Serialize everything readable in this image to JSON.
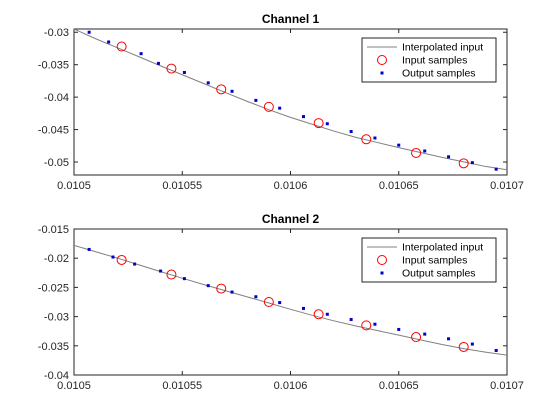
{
  "chart_data": [
    {
      "type": "line",
      "title": "Channel 1",
      "xlim": [
        0.0105,
        0.0107
      ],
      "ylim": [
        -0.052,
        -0.0295
      ],
      "x_ticks": [
        0.0105,
        0.01055,
        0.0106,
        0.01065,
        0.0107
      ],
      "x_tick_labels": [
        "0.0105",
        "0.01055",
        "0.0106",
        "0.01065",
        "0.0107"
      ],
      "y_ticks": [
        -0.03,
        -0.035,
        -0.04,
        -0.045,
        -0.05
      ],
      "y_tick_labels": [
        "-0.03",
        "-0.035",
        "-0.04",
        "-0.045",
        "-0.05"
      ],
      "grid": false,
      "legend_position": "top-right",
      "interpolated_curve": {
        "x": [
          0.0105,
          0.01051,
          0.01052,
          0.01053,
          0.01054,
          0.01055,
          0.01056,
          0.01057,
          0.01058,
          0.01059,
          0.0106,
          0.01061,
          0.01062,
          0.01063,
          0.01064,
          0.01065,
          0.01066,
          0.01067,
          0.01068,
          0.01069,
          0.0107
        ],
        "y": [
          -0.0295,
          -0.031,
          -0.03238,
          -0.03378,
          -0.03518,
          -0.03655,
          -0.03792,
          -0.0393,
          -0.04065,
          -0.04193,
          -0.04312,
          -0.04418,
          -0.04523,
          -0.04618,
          -0.04698,
          -0.04778,
          -0.04853,
          -0.04928,
          -0.04998,
          -0.05068,
          -0.0512
        ]
      },
      "series": [
        {
          "name": "Interpolated input",
          "style": "line",
          "color": "#808080"
        },
        {
          "name": "Input samples",
          "style": "circle",
          "color": "#ff0000",
          "x": [
            0.010522,
            0.010545,
            0.010568,
            0.01059,
            0.010613,
            0.010635,
            0.010658,
            0.01068
          ],
          "y": [
            -0.0322,
            -0.0356,
            -0.0388,
            -0.0415,
            -0.044,
            -0.0465,
            -0.0486,
            -0.0502
          ]
        },
        {
          "name": "Output samples",
          "style": "square",
          "color": "#0000cc",
          "x": [
            0.010507,
            0.010516,
            0.010531,
            0.010539,
            0.010551,
            0.010562,
            0.010573,
            0.010584,
            0.010595,
            0.010606,
            0.010617,
            0.010628,
            0.010639,
            0.01065,
            0.010662,
            0.010673,
            0.010684,
            0.010695
          ],
          "y": [
            -0.03,
            -0.0315,
            -0.0333,
            -0.0348,
            -0.0362,
            -0.0378,
            -0.0391,
            -0.0405,
            -0.0417,
            -0.043,
            -0.0441,
            -0.0453,
            -0.0463,
            -0.0474,
            -0.0483,
            -0.0492,
            -0.0501,
            -0.0511
          ]
        }
      ]
    },
    {
      "type": "line",
      "title": "Channel 2",
      "xlim": [
        0.0105,
        0.0107
      ],
      "ylim": [
        -0.04,
        -0.015
      ],
      "x_ticks": [
        0.0105,
        0.01055,
        0.0106,
        0.01065,
        0.0107
      ],
      "x_tick_labels": [
        "0.0105",
        "0.01055",
        "0.0106",
        "0.01065",
        "0.0107"
      ],
      "y_ticks": [
        -0.015,
        -0.02,
        -0.025,
        -0.03,
        -0.035,
        -0.04
      ],
      "y_tick_labels": [
        "-0.015",
        "-0.02",
        "-0.025",
        "-0.03",
        "-0.035",
        "-0.04"
      ],
      "grid": false,
      "legend_position": "top-right",
      "interpolated_curve": {
        "x": [
          0.0105,
          0.01051,
          0.01052,
          0.01053,
          0.01054,
          0.01055,
          0.01056,
          0.01057,
          0.01058,
          0.01059,
          0.0106,
          0.01061,
          0.01062,
          0.01063,
          0.01064,
          0.01065,
          0.01066,
          0.01067,
          0.01068,
          0.01069,
          0.0107
        ],
        "y": [
          -0.0178,
          -0.0189,
          -0.01998,
          -0.02114,
          -0.0223,
          -0.02342,
          -0.02452,
          -0.02558,
          -0.02662,
          -0.02767,
          -0.02875,
          -0.02978,
          -0.03072,
          -0.03158,
          -0.03238,
          -0.03318,
          -0.03398,
          -0.03478,
          -0.03548,
          -0.03608,
          -0.0366
        ]
      },
      "series": [
        {
          "name": "Interpolated input",
          "style": "line",
          "color": "#808080"
        },
        {
          "name": "Input samples",
          "style": "circle",
          "color": "#ff0000",
          "x": [
            0.010522,
            0.010545,
            0.010568,
            0.01059,
            0.010613,
            0.010635,
            0.010658,
            0.01068
          ],
          "y": [
            -0.0203,
            -0.0228,
            -0.0252,
            -0.0275,
            -0.0296,
            -0.0315,
            -0.0335,
            -0.0352
          ]
        },
        {
          "name": "Output samples",
          "style": "square",
          "color": "#0000cc",
          "x": [
            0.010507,
            0.010518,
            0.010528,
            0.01054,
            0.010551,
            0.010562,
            0.010573,
            0.010584,
            0.010595,
            0.010606,
            0.010617,
            0.010628,
            0.010639,
            0.01065,
            0.010662,
            0.010673,
            0.010684,
            0.010695
          ],
          "y": [
            -0.0185,
            -0.0198,
            -0.021,
            -0.0222,
            -0.0235,
            -0.0247,
            -0.0258,
            -0.0266,
            -0.0276,
            -0.0286,
            -0.0296,
            -0.0305,
            -0.0313,
            -0.0322,
            -0.033,
            -0.0338,
            -0.0347,
            -0.0358
          ]
        }
      ]
    }
  ]
}
